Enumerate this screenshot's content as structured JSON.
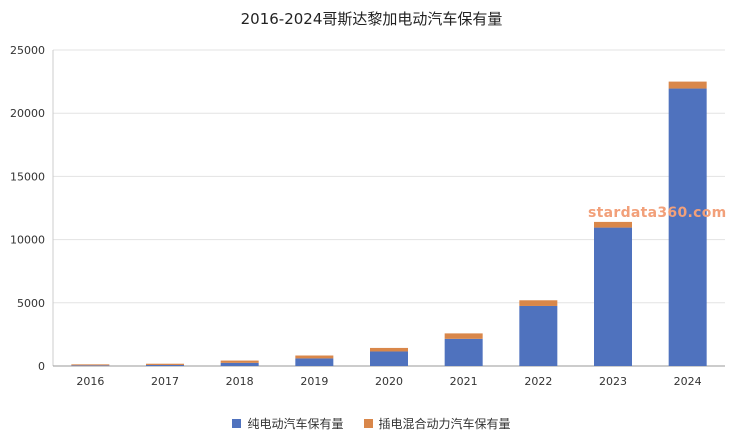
{
  "chart_data": {
    "type": "bar",
    "stacked": true,
    "title": "2016-2024哥斯达黎加电动汽车保有量",
    "categories": [
      "2016",
      "2017",
      "2018",
      "2019",
      "2020",
      "2021",
      "2022",
      "2023",
      "2024"
    ],
    "series": [
      {
        "name": "纯电动汽车保有量",
        "color": "#4f72be",
        "values": [
          50,
          80,
          250,
          600,
          1150,
          2150,
          4750,
          10950,
          21950
        ]
      },
      {
        "name": "插电混合动力汽车保有量",
        "color": "#d9874a",
        "values": [
          80,
          100,
          180,
          230,
          280,
          430,
          450,
          450,
          550
        ]
      }
    ],
    "yticks": [
      0,
      5000,
      10000,
      15000,
      20000,
      25000
    ],
    "ylim": [
      0,
      25000
    ],
    "grid": true,
    "legend_position": "bottom"
  },
  "watermark": {
    "text": "stardata360.com",
    "color": "#f2a07a"
  }
}
